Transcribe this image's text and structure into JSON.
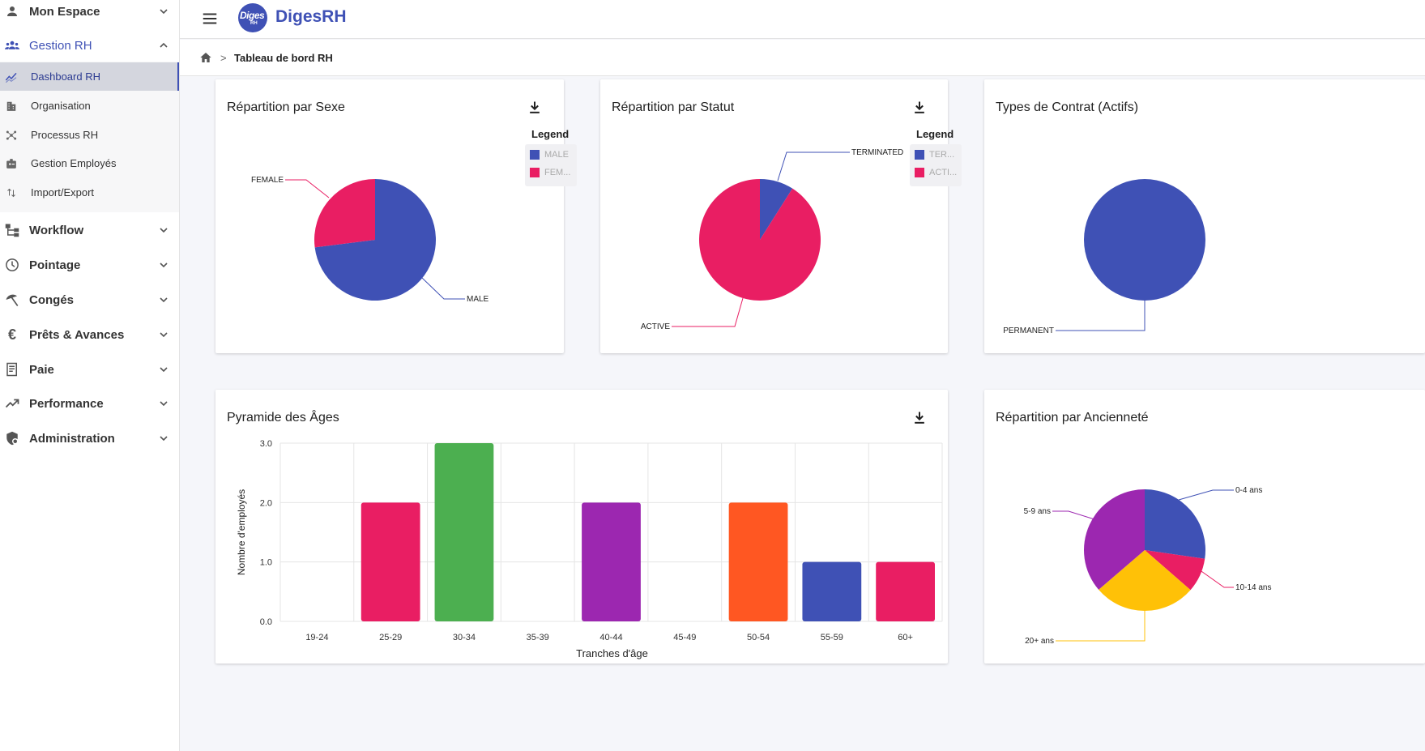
{
  "sidebar": {
    "items": [
      {
        "label": "Mon Espace",
        "icon": "person-icon",
        "expanded": false
      },
      {
        "label": "Gestion RH",
        "icon": "group-icon",
        "expanded": true
      },
      {
        "label": "Workflow",
        "icon": "workflow-icon",
        "expanded": false
      },
      {
        "label": "Pointage",
        "icon": "clock-icon",
        "expanded": false
      },
      {
        "label": "Congés",
        "icon": "beach-umbrella-icon",
        "expanded": false
      },
      {
        "label": "Prêts & Avances",
        "icon": "euro-icon",
        "expanded": false
      },
      {
        "label": "Paie",
        "icon": "receipt-icon",
        "expanded": false
      },
      {
        "label": "Performance",
        "icon": "trending-up-icon",
        "expanded": false
      },
      {
        "label": "Administration",
        "icon": "admin-shield-icon",
        "expanded": false
      }
    ],
    "submenu": [
      {
        "label": "Dashboard RH",
        "icon": "dashboard-chart-icon",
        "active": true
      },
      {
        "label": "Organisation",
        "icon": "building-icon",
        "active": false
      },
      {
        "label": "Processus RH",
        "icon": "process-hub-icon",
        "active": false
      },
      {
        "label": "Gestion Employés",
        "icon": "badge-icon",
        "active": false
      },
      {
        "label": "Import/Export",
        "icon": "import-export-icon",
        "active": false
      }
    ]
  },
  "header": {
    "logo_text": "Diges",
    "logo_sub": "RH",
    "brand": "DigesRH"
  },
  "breadcrumb": {
    "separator": ">",
    "current": "Tableau de bord RH"
  },
  "colors": {
    "primary": "#3f51b5",
    "pink": "#e91e63",
    "green": "#4caf50",
    "purple": "#9c27b0",
    "orange": "#ff5722",
    "yellow": "#ffc107"
  },
  "cards": {
    "sexe": {
      "title": "Répartition par Sexe",
      "legend_title": "Legend",
      "legend": [
        "MALE",
        "FEM..."
      ]
    },
    "statut": {
      "title": "Répartition par Statut",
      "legend_title": "Legend",
      "legend": [
        "TER...",
        "ACTI..."
      ]
    },
    "contrat": {
      "title": "Types de Contrat (Actifs)"
    },
    "ages": {
      "title": "Pyramide des Âges"
    },
    "anciennete": {
      "title": "Répartition par Ancienneté"
    }
  },
  "chart_data": [
    {
      "type": "pie",
      "title": "Répartition par Sexe",
      "labels": [
        "MALE",
        "FEMALE"
      ],
      "values": [
        73,
        27
      ],
      "colors": [
        "#3f51b5",
        "#e91e63"
      ],
      "legend": "top-right"
    },
    {
      "type": "pie",
      "title": "Répartition par Statut",
      "labels": [
        "TERMINATED",
        "ACTIVE"
      ],
      "values": [
        9,
        91
      ],
      "colors": [
        "#3f51b5",
        "#e91e63"
      ],
      "legend": "top-right"
    },
    {
      "type": "pie",
      "title": "Types de Contrat (Actifs)",
      "labels": [
        "PERMANENT"
      ],
      "values": [
        100
      ],
      "colors": [
        "#3f51b5"
      ]
    },
    {
      "type": "bar",
      "title": "Pyramide des Âges",
      "categories": [
        "19-24",
        "25-29",
        "30-34",
        "35-39",
        "40-44",
        "45-49",
        "50-54",
        "55-59",
        "60+"
      ],
      "values": [
        0,
        2,
        3,
        0,
        2,
        0,
        2,
        1,
        1
      ],
      "colors": [
        "#3f51b5",
        "#e91e63",
        "#4caf50",
        "#ffc107",
        "#9c27b0",
        "#00bcd4",
        "#ff5722",
        "#3f51b5",
        "#e91e63"
      ],
      "xlabel": "Tranches d'âge",
      "ylabel": "Nombre d'employés",
      "ylim": [
        0,
        3
      ],
      "yticks": [
        "0.0",
        "1.0",
        "2.0",
        "3.0"
      ],
      "grid": true
    },
    {
      "type": "pie",
      "title": "Répartition par Ancienneté",
      "labels": [
        "0-4 ans",
        "10-14 ans",
        "20+ ans",
        "5-9 ans"
      ],
      "values": [
        27.3,
        9.1,
        27.3,
        36.3
      ],
      "colors": [
        "#3f51b5",
        "#e91e63",
        "#ffc107",
        "#9c27b0"
      ]
    }
  ]
}
